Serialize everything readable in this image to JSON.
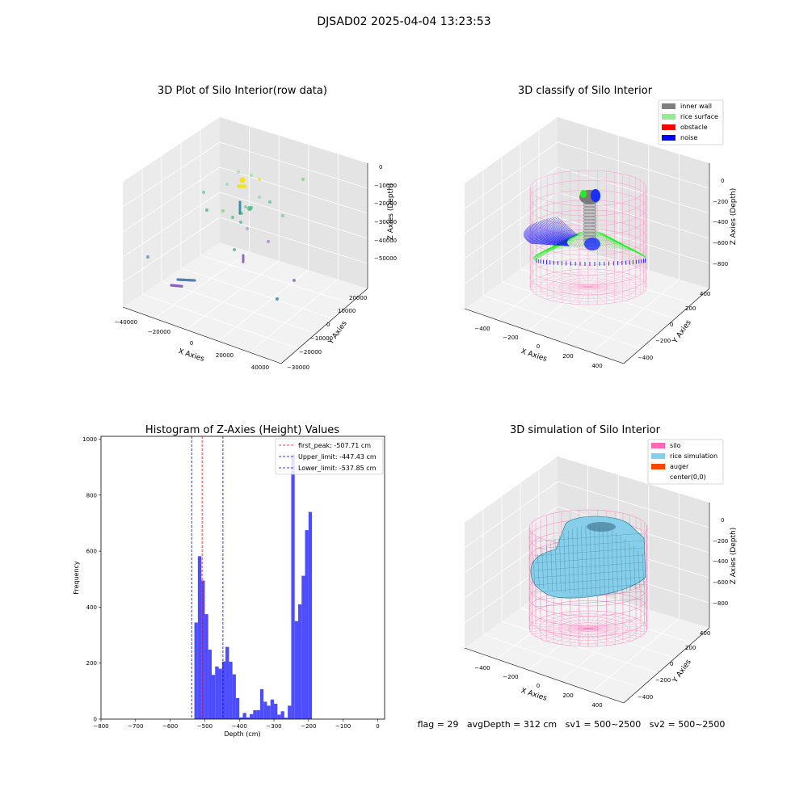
{
  "figure": {
    "suptitle": "DJSAD02 2025-04-04 13:23:53",
    "footer": "flag = 29   avgDepth = 312 cm   sv1 = 500~2500   sv2 = 500~2500"
  },
  "colors": {
    "hist_bar": "#4d4dff",
    "first_peak": "#ff0000",
    "limits": "#0000ff",
    "inner_wall": "#808080",
    "rice_surface": "#90ee90",
    "obstacle": "#ff0000",
    "noise": "#0000ff",
    "silo": "#ff69b4",
    "rice_simulation": "#87ceeb",
    "auger": "#ff4500",
    "pane_top": "#f2f2f2",
    "pane_left": "#ebebeb",
    "pane_right": "#e4e4e4"
  },
  "chart_data": [
    {
      "type": "scatter",
      "title": "3D Plot of Silo Interior(row data)",
      "xlabel": "X Axies",
      "ylabel": "Y Axies",
      "zlabel": "Z Axies (Depth)",
      "xticks": [
        "−40000",
        "−20000",
        "0",
        "20000",
        "40000"
      ],
      "yticks": [
        "−30000",
        "−20000",
        "−10000",
        "0",
        "10000",
        "20000"
      ],
      "zticks": [
        "0",
        "−10000",
        "−20000",
        "−30000",
        "−40000",
        "−50000"
      ],
      "legend": []
    },
    {
      "type": "scatter",
      "title": "3D classify of Silo Interior",
      "xlabel": "X Axies",
      "ylabel": "Y Axies",
      "zlabel": "Z Axies (Depth)",
      "xticks": [
        "−400",
        "−200",
        "0",
        "200",
        "400"
      ],
      "yticks": [
        "−400",
        "−200",
        "0",
        "200",
        "400"
      ],
      "zticks": [
        "0",
        "−200",
        "−400",
        "−600",
        "−800"
      ],
      "legend": [
        {
          "label": "inner wall",
          "color": "#808080"
        },
        {
          "label": "rice surface",
          "color": "#90ee90"
        },
        {
          "label": "obstacle",
          "color": "#ff0000"
        },
        {
          "label": "noise",
          "color": "#0000ff"
        }
      ],
      "legend_position": "top-right"
    },
    {
      "type": "bar",
      "title": "Histogram of Z-Axies (Height) Values",
      "xlabel": "Depth (cm)",
      "ylabel": "Frequency",
      "xlim": [
        -800,
        20
      ],
      "ylim": [
        0,
        1010
      ],
      "xticks": [
        -800,
        -700,
        -600,
        -500,
        -400,
        -300,
        -200,
        -100,
        0
      ],
      "yticks": [
        0,
        200,
        400,
        600,
        800,
        1000
      ],
      "bin_start": -530,
      "bin_width": 10,
      "values": [
        345,
        582,
        495,
        375,
        248,
        158,
        188,
        180,
        206,
        258,
        205,
        160,
        75,
        6,
        22,
        6,
        18,
        32,
        32,
        107,
        62,
        48,
        70,
        55,
        16,
        28,
        5,
        48,
        945,
        350,
        410,
        512,
        675,
        740
      ],
      "lines": [
        {
          "label": "first_peak: -507.71 cm",
          "x": -507.71,
          "color": "#ff0000"
        },
        {
          "label": "Upper_limit: -447.43 cm",
          "x": -447.43,
          "color": "#0000ff"
        },
        {
          "label": "Lower_limit: -537.85 cm",
          "x": -537.85,
          "color": "#0000ff"
        }
      ],
      "legend_position": "top-right",
      "grid": false
    },
    {
      "type": "surface",
      "title": "3D simulation of Silo Interior",
      "xlabel": "X Axies",
      "ylabel": "Y Axies",
      "zlabel": "Z Axies (Depth)",
      "xticks": [
        "−400",
        "−200",
        "0",
        "200",
        "400"
      ],
      "yticks": [
        "−400",
        "−200",
        "0",
        "200",
        "400"
      ],
      "zticks": [
        "0",
        "−200",
        "−400",
        "−600",
        "−800"
      ],
      "legend": [
        {
          "label": "silo",
          "color": "#ff69b4"
        },
        {
          "label": "rice simulation",
          "color": "#87ceeb"
        },
        {
          "label": "auger",
          "color": "#ff4500"
        },
        {
          "label": "center(0,0)",
          "color": ""
        }
      ],
      "legend_position": "top-right"
    }
  ]
}
